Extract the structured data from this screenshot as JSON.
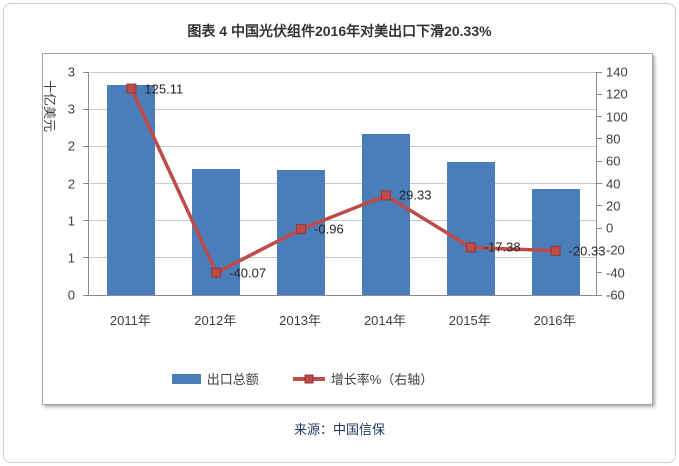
{
  "figure": {
    "title": "图表 4 中国光伏组件2016年对美出口下滑20.33%",
    "source": "来源：中国信保"
  },
  "chart_data": {
    "type": "combo",
    "title": "图表 4 中国光伏组件2016年对美出口下滑20.33%",
    "categories": [
      "2011年",
      "2012年",
      "2013年",
      "2014年",
      "2015年",
      "2016年"
    ],
    "series": [
      {
        "name": "出口总额",
        "type": "bar",
        "axis": "left",
        "color": "#4a7ebb",
        "values": [
          2.83,
          1.7,
          1.68,
          2.17,
          1.79,
          1.43
        ]
      },
      {
        "name": "增长率%（右轴）",
        "type": "line",
        "axis": "right",
        "color": "#be4b48",
        "marker_border": "#943634",
        "values": [
          125.11,
          -40.07,
          -0.96,
          29.33,
          -17.38,
          -20.33
        ],
        "labels": [
          "125.11",
          "-40.07",
          "-0.96",
          "29.33",
          "-17.38",
          "-20.33"
        ]
      }
    ],
    "left_axis": {
      "title": "十亿美元",
      "min": 0,
      "max": 3,
      "step": 0.5,
      "tick_labels": [
        "3",
        "3",
        "2",
        "2",
        "1",
        "1",
        "0"
      ]
    },
    "right_axis": {
      "min": -60,
      "max": 140,
      "step": 20,
      "tick_labels": [
        "140",
        "120",
        "100",
        "80",
        "60",
        "40",
        "20",
        "0",
        "-20",
        "-40",
        "-60"
      ]
    },
    "grid": true,
    "legend_position": "bottom",
    "legend": [
      "出口总额",
      "增长率%（右轴）"
    ]
  },
  "colors": {
    "bar": "#4a7ebb",
    "line": "#be4b48",
    "gridline": "#c9c9c9",
    "axis": "#8a8a8a",
    "title_text": "#333333",
    "source_text": "#1f3864"
  }
}
